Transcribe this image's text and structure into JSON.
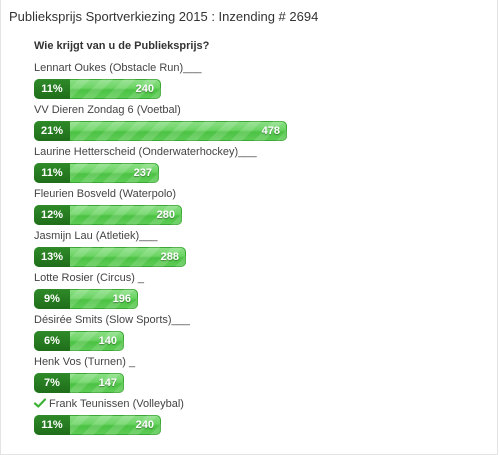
{
  "poll": {
    "title": "Publieksprijs Sportverkiezing 2015 : Inzending # 2694",
    "question": "Wie krijgt van u de Publieksprijs?",
    "bar_color": "#5ccb54",
    "percent_color": "#237a1d",
    "max_votes": 478,
    "candidates": [
      {
        "name": "Lennart Oukes (Obstacle Run)___",
        "percent": "11%",
        "votes": "240",
        "checked": false
      },
      {
        "name": "VV Dieren Zondag 6 (Voetbal)",
        "percent": "21%",
        "votes": "478",
        "checked": false
      },
      {
        "name": "Laurine Hetterscheid (Onderwaterhockey)___",
        "percent": "11%",
        "votes": "237",
        "checked": false
      },
      {
        "name": "Fleurien Bosveld (Waterpolo)",
        "percent": "12%",
        "votes": "280",
        "checked": false
      },
      {
        "name": "Jasmijn Lau (Atletiek)___",
        "percent": "13%",
        "votes": "288",
        "checked": false
      },
      {
        "name": "Lotte Rosier (Circus) _",
        "percent": "9%",
        "votes": "196",
        "checked": false
      },
      {
        "name": "Désirée Smits (Slow Sports)___",
        "percent": "6%",
        "votes": "140",
        "checked": false
      },
      {
        "name": "Henk Vos (Turnen) _",
        "percent": "7%",
        "votes": "147",
        "checked": false
      },
      {
        "name": "Frank Teunissen (Volleybal)",
        "percent": "11%",
        "votes": "240",
        "checked": true,
        "check_icon": "checkmark-icon"
      }
    ]
  }
}
